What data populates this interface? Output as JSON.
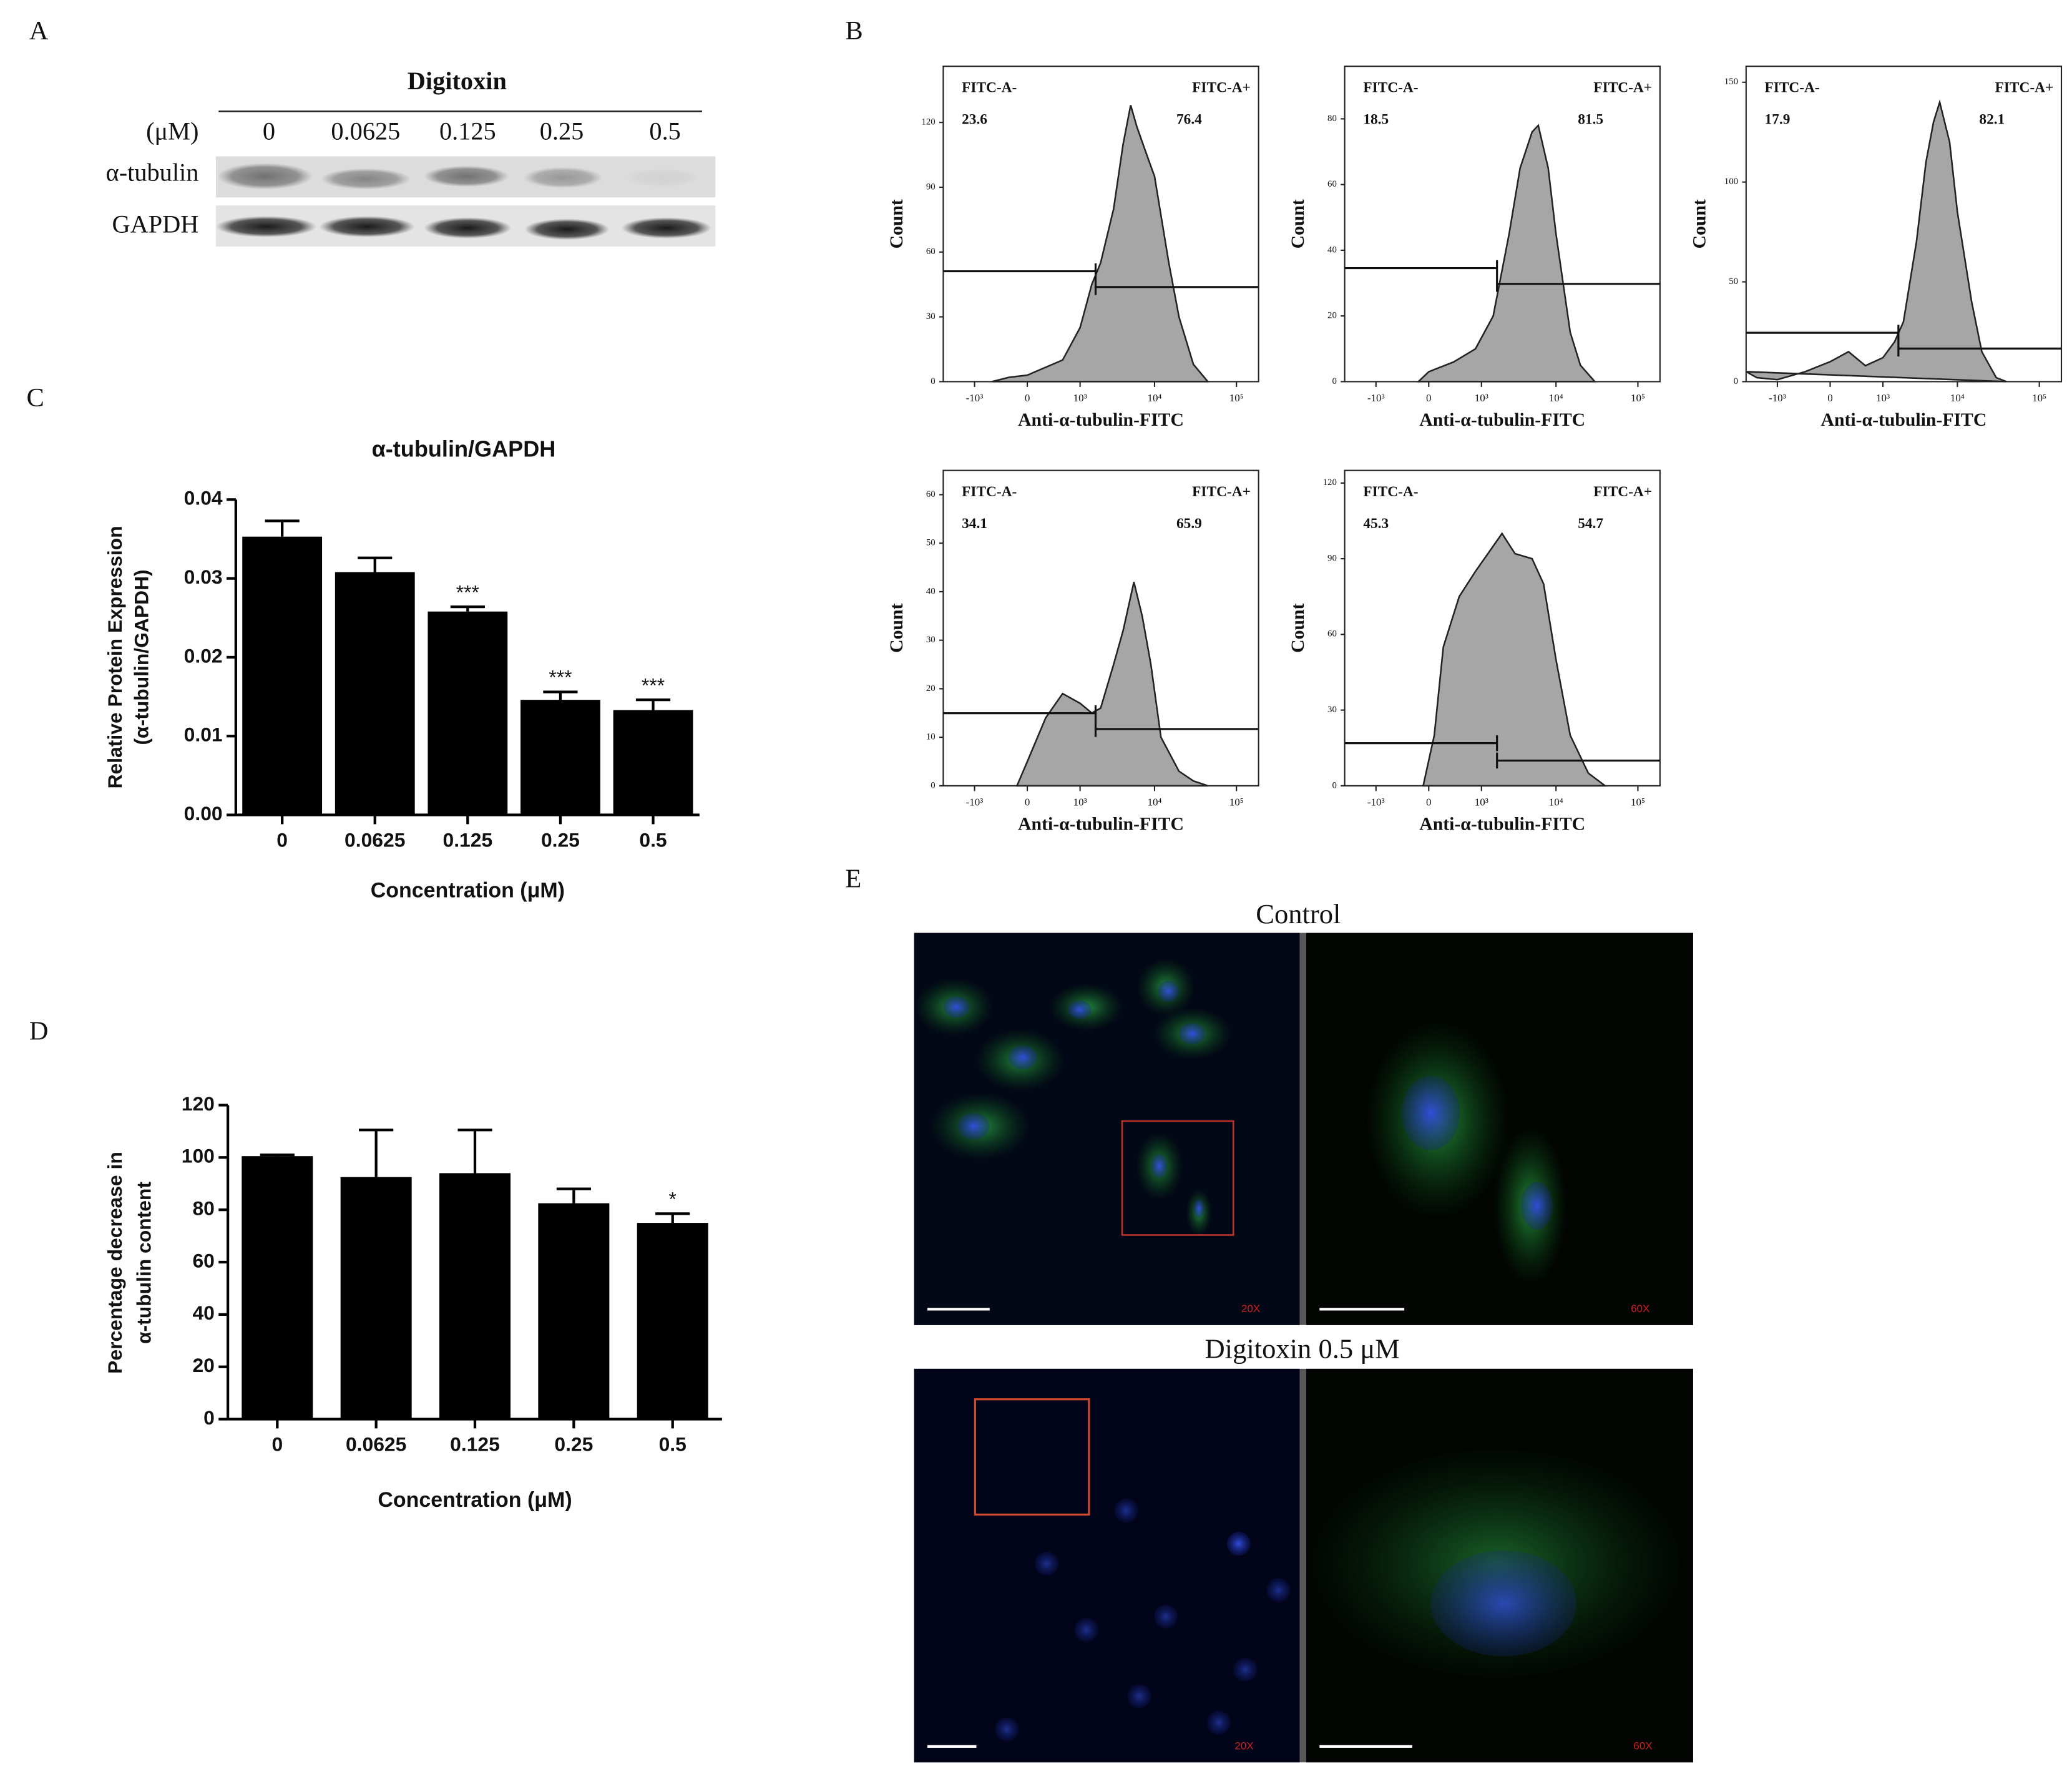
{
  "panel_labels": [
    "A",
    "B",
    "C",
    "D",
    "E"
  ],
  "blot": {
    "title": "Digitoxin",
    "unit": "(μM)",
    "lanes": [
      "0",
      "0.0625",
      "0.125",
      "0.25",
      "0.5"
    ],
    "rows": [
      "α-tubulin",
      "GAPDH"
    ]
  },
  "microscopy": {
    "conditions": [
      "Control",
      "Digitoxin 0.5 μM"
    ],
    "magnifications": [
      "20X",
      "60X"
    ]
  },
  "chart_data": [
    {
      "type": "bar",
      "title": "α-tubulin/GAPDH",
      "ylabel": [
        "Relative Protein Expression",
        "(α-tubulin/GAPDH)"
      ],
      "xlabel": "Concentration  (μM)",
      "categories": [
        "0",
        "0.0625",
        "0.125",
        "0.25",
        "0.5"
      ],
      "values": [
        0.0353,
        0.0308,
        0.0258,
        0.0146,
        0.0133
      ],
      "errors": [
        0.002,
        0.0018,
        0.0006,
        0.001,
        0.0013
      ],
      "annotations": [
        null,
        null,
        "***",
        "***",
        "***"
      ],
      "color": "#000000",
      "ylim": [
        0,
        0.04
      ],
      "yticks": [
        {
          "value": 0,
          "label": "0.00"
        },
        0.01,
        0.02,
        0.03,
        0.04
      ]
    },
    {
      "type": "bar",
      "ylabel": [
        "Percentage decrease in",
        "α-tubulin content"
      ],
      "xlabel": "Concentration  (μM)",
      "categories": [
        "0",
        "0.0625",
        "0.125",
        "0.25",
        "0.5"
      ],
      "values": [
        100.5,
        92.5,
        94,
        82.5,
        75
      ],
      "errors": [
        0.5,
        18,
        16.5,
        5.5,
        3.5
      ],
      "annotations": [
        null,
        null,
        null,
        null,
        "*"
      ],
      "color": "#000000",
      "ylim": [
        0,
        120
      ],
      "yticks": [
        0,
        20,
        40,
        60,
        80,
        100,
        120
      ]
    },
    {
      "type": "area",
      "xlabel": "Anti-α-tubulin-FITC",
      "ylabel": "Count",
      "xscale": "biexponential",
      "color": "#a6a6a6",
      "gate_x": 1700,
      "gates": [
        {
          "name": "FITC-A-",
          "percent": 23.6
        },
        {
          "name": "FITC-A+",
          "percent": 76.4
        }
      ],
      "x": [
        -500,
        -200,
        0,
        500,
        1000,
        1500,
        2000,
        3000,
        4000,
        5000,
        6000,
        8000,
        10000,
        15000,
        20000,
        30000,
        45000
      ],
      "values": [
        0,
        2,
        3,
        10,
        25,
        45,
        55,
        80,
        110,
        128,
        118,
        105,
        95,
        55,
        30,
        8,
        0
      ],
      "xlim": [
        -2800,
        185000
      ],
      "ylim": [
        0,
        146
      ],
      "xticks": [
        {
          "value": -1000,
          "label": "-10³"
        },
        0,
        {
          "value": 1000,
          "label": "10³"
        },
        {
          "value": 10000,
          "label": "10⁴"
        },
        {
          "value": 100000,
          "label": "10⁵"
        }
      ],
      "yticks": [
        0,
        30,
        60,
        90,
        120
      ]
    },
    {
      "type": "area",
      "xlabel": "Anti-α-tubulin-FITC",
      "ylabel": "Count",
      "xscale": "biexponential",
      "color": "#a6a6a6",
      "gate_x": 1700,
      "gates": [
        {
          "name": "FITC-A-",
          "percent": 18.5
        },
        {
          "name": "FITC-A+",
          "percent": 81.5
        }
      ],
      "x": [
        -100,
        0,
        300,
        800,
        1500,
        2500,
        3500,
        5000,
        6000,
        8000,
        10000,
        15000,
        20000,
        30000
      ],
      "values": [
        0,
        3,
        6,
        10,
        20,
        45,
        65,
        76,
        78,
        65,
        45,
        15,
        5,
        0
      ],
      "xlim": [
        -2800,
        185000
      ],
      "ylim": [
        0,
        96
      ],
      "xticks": [
        {
          "value": -1000,
          "label": "-10³"
        },
        0,
        {
          "value": 1000,
          "label": "10³"
        },
        {
          "value": 10000,
          "label": "10⁴"
        },
        {
          "value": 100000,
          "label": "10⁵"
        }
      ],
      "yticks": [
        0,
        20,
        40,
        60,
        80
      ]
    },
    {
      "type": "area",
      "xlabel": "Anti-α-tubulin-FITC",
      "ylabel": "Count",
      "xscale": "biexponential",
      "color": "#a6a6a6",
      "gate_x": 1700,
      "gates": [
        {
          "name": "FITC-A-",
          "percent": 17.9
        },
        {
          "name": "FITC-A+",
          "percent": 82.1
        }
      ],
      "x": [
        -2800,
        -2000,
        -1000,
        -300,
        0,
        200,
        500,
        1000,
        1500,
        2000,
        3000,
        4000,
        5000,
        6000,
        8000,
        10000,
        15000,
        20000,
        30000,
        40000
      ],
      "values": [
        5,
        2,
        1,
        5,
        10,
        15,
        8,
        12,
        20,
        30,
        70,
        110,
        130,
        140,
        120,
        85,
        40,
        15,
        2,
        0
      ],
      "xlim": [
        -2800,
        185000
      ],
      "ylim": [
        0,
        158
      ],
      "xticks": [
        {
          "value": -1000,
          "label": "-10³"
        },
        0,
        {
          "value": 1000,
          "label": "10³"
        },
        {
          "value": 10000,
          "label": "10⁴"
        },
        {
          "value": 100000,
          "label": "10⁵"
        }
      ],
      "yticks": [
        0,
        50,
        100,
        150
      ]
    },
    {
      "type": "area",
      "xlabel": "Anti-α-tubulin-FITC",
      "ylabel": "Count",
      "xscale": "biexponential",
      "color": "#a6a6a6",
      "gate_x": 1700,
      "gates": [
        {
          "name": "FITC-A-",
          "percent": 34.1
        },
        {
          "name": "FITC-A+",
          "percent": 65.9
        }
      ],
      "x": [
        -100,
        0,
        200,
        500,
        1000,
        1500,
        2000,
        3000,
        4000,
        5500,
        7000,
        9000,
        12000,
        20000,
        30000,
        45000
      ],
      "values": [
        0,
        5,
        14,
        19,
        17,
        15,
        16,
        25,
        32,
        42,
        35,
        25,
        10,
        3,
        1,
        0
      ],
      "xlim": [
        -2800,
        185000
      ],
      "ylim": [
        0,
        65
      ],
      "xticks": [
        {
          "value": -1000,
          "label": "-10³"
        },
        0,
        {
          "value": 1000,
          "label": "10³"
        },
        {
          "value": 10000,
          "label": "10⁴"
        },
        {
          "value": 100000,
          "label": "10⁵"
        }
      ],
      "yticks": [
        0,
        10,
        20,
        30,
        40,
        50,
        60
      ]
    },
    {
      "type": "area",
      "xlabel": "Anti-α-tubulin-FITC",
      "ylabel": "Count",
      "xscale": "biexponential",
      "color": "#a6a6a6",
      "gate_x": 1700,
      "gates": [
        {
          "name": "FITC-A-",
          "percent": 45.3
        },
        {
          "name": "FITC-A+",
          "percent": 54.7
        }
      ],
      "x": [
        -50,
        50,
        150,
        400,
        800,
        1500,
        2000,
        3000,
        5000,
        7000,
        10000,
        15000,
        25000,
        40000
      ],
      "values": [
        0,
        20,
        55,
        75,
        85,
        95,
        100,
        92,
        90,
        80,
        50,
        20,
        5,
        0
      ],
      "xlim": [
        -2800,
        185000
      ],
      "ylim": [
        0,
        125
      ],
      "xticks": [
        {
          "value": -1000,
          "label": "-10³"
        },
        0,
        {
          "value": 1000,
          "label": "10³"
        },
        {
          "value": 10000,
          "label": "10⁴"
        },
        {
          "value": 100000,
          "label": "10⁵"
        }
      ],
      "yticks": [
        0,
        30,
        60,
        90,
        120
      ]
    }
  ]
}
